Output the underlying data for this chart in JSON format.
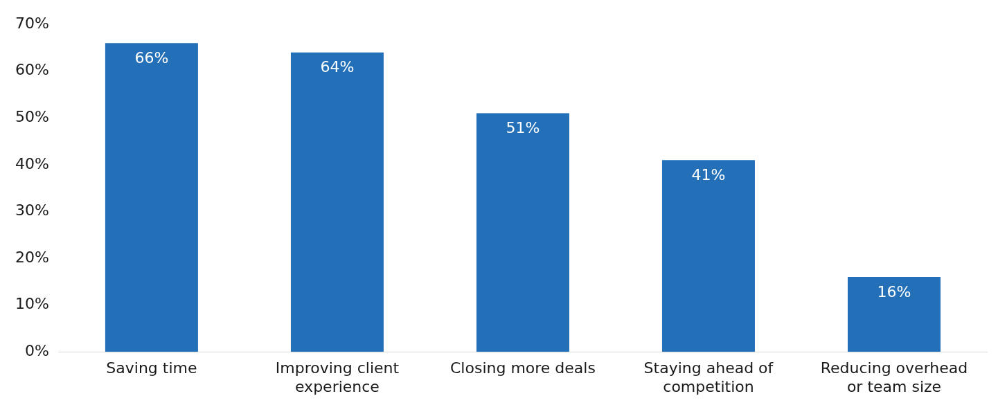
{
  "chart_data": {
    "type": "bar",
    "categories": [
      "Saving time",
      "Improving client experience",
      "Closing more deals",
      "Staying ahead of competition",
      "Reducing overhead or team size"
    ],
    "values": [
      66,
      64,
      51,
      41,
      16
    ],
    "color": "#2470b8",
    "value_labels": [
      "66%",
      "64%",
      "51%",
      "41%",
      "16%"
    ],
    "ylim": [
      0,
      70
    ],
    "yticks": [
      {
        "value": 0,
        "label": "0%"
      },
      {
        "value": 10,
        "label": "10%"
      },
      {
        "value": 20,
        "label": "20%"
      },
      {
        "value": 30,
        "label": "30%"
      },
      {
        "value": 40,
        "label": "40%"
      },
      {
        "value": 50,
        "label": "50%"
      },
      {
        "value": 60,
        "label": "60%"
      },
      {
        "value": 70,
        "label": "70%"
      }
    ],
    "grid": false,
    "legend": false
  }
}
